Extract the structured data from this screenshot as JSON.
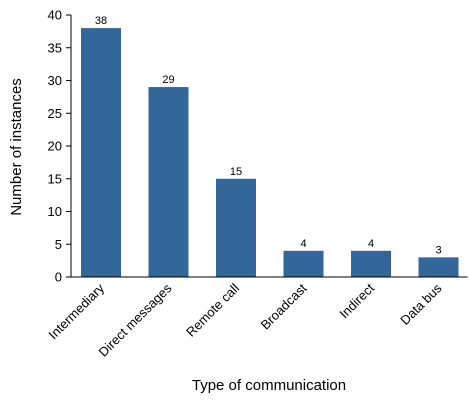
{
  "chart_data": {
    "type": "bar",
    "categories": [
      "Intermediary",
      "Direct messages",
      "Remote call",
      "Broadcast",
      "Indirect",
      "Data bus"
    ],
    "values": [
      38,
      29,
      15,
      4,
      4,
      3
    ],
    "title": "",
    "xlabel": "Type of communication",
    "ylabel": "Number of instances",
    "ylim": [
      0,
      40
    ],
    "yticks": [
      0,
      5,
      10,
      15,
      20,
      25,
      30,
      35,
      40
    ],
    "grid": false,
    "legend": "none",
    "bar_color": "#336699"
  }
}
